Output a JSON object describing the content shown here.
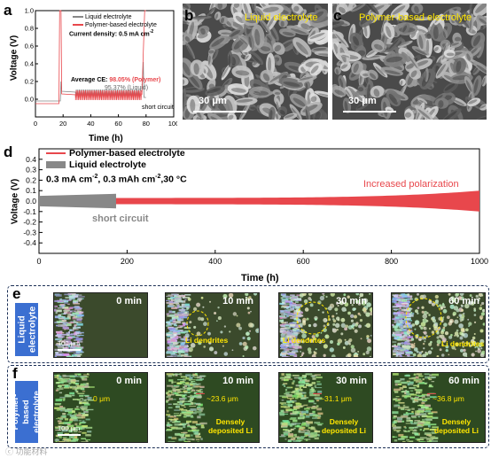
{
  "panels": {
    "a": "a",
    "b": "b",
    "c": "c",
    "d": "d",
    "e": "e",
    "f": "f"
  },
  "panel_a": {
    "legend": [
      "Liquid electrolyte",
      "Polymer-based electrolyte"
    ],
    "current_density": "Current density: 0.5 mA cm",
    "current_density_sup": "-2",
    "ce_label": "Average CE: ",
    "ce_polymer": "98.05% (Polymer)",
    "ce_liquid": "95.37% (Liquid)",
    "short_circuit": "short circuit",
    "xlabel": "Time (h)",
    "ylabel": "Voltage (V)",
    "xticks": [
      "0",
      "20",
      "40",
      "60",
      "80",
      "100"
    ],
    "yticks": [
      "0.0",
      "0.2",
      "0.4",
      "0.6",
      "0.8",
      "1.0"
    ],
    "colors": {
      "polymer": "#e8474c",
      "liquid": "#888888"
    }
  },
  "panel_b": {
    "label": "Liquid electrolyte",
    "scale": "30 μm"
  },
  "panel_c": {
    "label": "Polymer-based electrolyte",
    "scale": "30 μm"
  },
  "chart_data": {
    "type": "line",
    "legend": [
      "Polymer-based electrolyte",
      "Liquid electrolyte"
    ],
    "condition": "0.3 mA cm",
    "condition_sup1": "-2",
    "condition_mid": ", 0.3 mAh cm",
    "condition_sup2": "-2",
    "condition_end": ",30 °C",
    "annotation_polarization": "Increased polarization",
    "annotation_short": "short circuit",
    "xlabel": "Time (h)",
    "ylabel": "Voltage (V)",
    "xlim": [
      0,
      1000
    ],
    "ylim": [
      -0.5,
      0.5
    ],
    "xticks": [
      "0",
      "200",
      "400",
      "600",
      "800",
      "1000"
    ],
    "yticks": [
      "0.4",
      "0.3",
      "0.2",
      "0.1",
      "0.0",
      "-0.1",
      "-0.2",
      "-0.3",
      "-0.4"
    ],
    "series": [
      {
        "name": "Polymer-based electrolyte",
        "x_range": [
          0,
          1000
        ],
        "amplitude_start": 0.03,
        "amplitude_end": 0.1,
        "color": "#e8474c"
      },
      {
        "name": "Liquid electrolyte",
        "x_range": [
          0,
          175
        ],
        "amplitude_start": 0.05,
        "amplitude_end": 0.07,
        "color": "#888888"
      }
    ]
  },
  "panel_e": {
    "side_label": "Liquid electrolyte",
    "times": [
      "0 min",
      "10 min",
      "30 min",
      "60 min"
    ],
    "dendrite_label": "Li dendrites",
    "scale": "100 μm"
  },
  "panel_f": {
    "side_label": "Polymer-based electrolyte",
    "times": [
      "0 min",
      "10 min",
      "30 min",
      "60 min"
    ],
    "distances": [
      "0 μm",
      "~23.6 μm",
      "~31.1 μm",
      "~36.8 μm"
    ],
    "deposited_label": "Densely deposited Li",
    "scale": "100 μm"
  },
  "watermark": "ⓒ 功能材料"
}
